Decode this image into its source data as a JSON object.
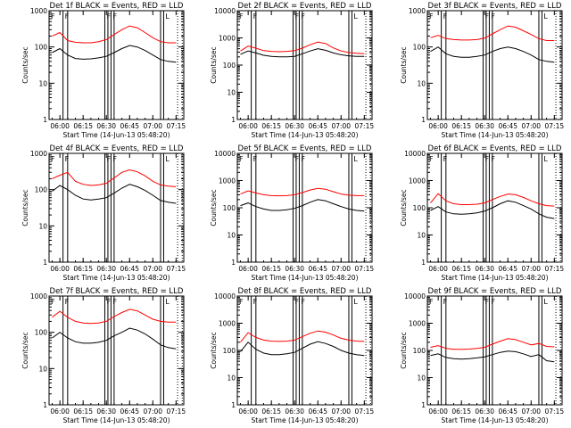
{
  "colors": {
    "events": "#000000",
    "lld": "#ff0000",
    "axes": "#000000",
    "background": "#ffffff"
  },
  "shared": {
    "ylabel": "Counts/sec",
    "xlabel": "Start Time (14-Jun-13 05:48:20)",
    "x_ticks": [
      "06:00",
      "06:15",
      "06:30",
      "06:45",
      "07:00",
      "07:15"
    ],
    "flags": [
      "F",
      "F",
      "F",
      "L"
    ],
    "y_scale": "log"
  },
  "chart_data": [
    {
      "type": "line",
      "title": "Det 1f BLACK = Events, RED = LLD",
      "ylim": [
        1,
        1000
      ],
      "y_ticks": [
        "1",
        "10",
        "100",
        "1000"
      ],
      "series": [
        {
          "name": "Events",
          "x": [
            "05:55",
            "06:00",
            "06:05",
            "06:10",
            "06:15",
            "06:20",
            "06:25",
            "06:30",
            "06:35",
            "06:40",
            "06:45",
            "06:50",
            "06:55",
            "07:00",
            "07:05",
            "07:10",
            "07:15"
          ],
          "values": [
            70,
            90,
            60,
            48,
            46,
            47,
            50,
            55,
            70,
            90,
            110,
            100,
            80,
            60,
            45,
            40,
            38
          ]
        },
        {
          "name": "LLD",
          "x": [
            "05:55",
            "06:00",
            "06:05",
            "06:10",
            "06:15",
            "06:20",
            "06:25",
            "06:30",
            "06:35",
            "06:40",
            "06:45",
            "06:50",
            "06:55",
            "07:00",
            "07:05",
            "07:10",
            "07:15"
          ],
          "values": [
            200,
            250,
            150,
            135,
            130,
            130,
            140,
            160,
            220,
            300,
            380,
            340,
            250,
            180,
            140,
            130,
            130
          ]
        }
      ]
    },
    {
      "type": "line",
      "title": "Det 2f BLACK = Events, RED = LLD",
      "ylim": [
        1,
        10000
      ],
      "y_ticks": [
        "1",
        "10",
        "100",
        "1000",
        "10000"
      ],
      "series": [
        {
          "name": "Events",
          "x": [
            "05:55",
            "06:00",
            "06:05",
            "06:10",
            "06:15",
            "06:20",
            "06:25",
            "06:30",
            "06:35",
            "06:40",
            "06:45",
            "06:50",
            "06:55",
            "07:00",
            "07:05",
            "07:10",
            "07:15"
          ],
          "values": [
            250,
            330,
            280,
            230,
            210,
            200,
            200,
            210,
            260,
            330,
            400,
            350,
            280,
            240,
            220,
            210,
            210
          ]
        },
        {
          "name": "LLD",
          "x": [
            "05:55",
            "06:00",
            "06:05",
            "06:10",
            "06:15",
            "06:20",
            "06:25",
            "06:30",
            "06:35",
            "06:40",
            "06:45",
            "06:50",
            "06:55",
            "07:00",
            "07:05",
            "07:10",
            "07:15"
          ],
          "values": [
            330,
            500,
            420,
            340,
            320,
            310,
            320,
            340,
            420,
            560,
            700,
            620,
            430,
            330,
            290,
            270,
            260
          ]
        }
      ]
    },
    {
      "type": "line",
      "title": "Det 3f BLACK = Events, RED = LLD",
      "ylim": [
        1,
        1000
      ],
      "y_ticks": [
        "1",
        "10",
        "100",
        "1000"
      ],
      "series": [
        {
          "name": "Events",
          "x": [
            "05:55",
            "06:00",
            "06:05",
            "06:10",
            "06:15",
            "06:20",
            "06:25",
            "06:30",
            "06:35",
            "06:40",
            "06:45",
            "06:50",
            "06:55",
            "07:00",
            "07:05",
            "07:10",
            "07:15"
          ],
          "values": [
            75,
            100,
            65,
            55,
            52,
            52,
            55,
            60,
            75,
            90,
            100,
            90,
            75,
            60,
            45,
            40,
            38
          ]
        },
        {
          "name": "LLD",
          "x": [
            "05:55",
            "06:00",
            "06:05",
            "06:10",
            "06:15",
            "06:20",
            "06:25",
            "06:30",
            "06:35",
            "06:40",
            "06:45",
            "06:50",
            "06:55",
            "07:00",
            "07:05",
            "07:10",
            "07:15"
          ],
          "values": [
            180,
            210,
            170,
            160,
            155,
            155,
            160,
            175,
            230,
            300,
            380,
            350,
            280,
            220,
            170,
            150,
            150
          ]
        }
      ]
    },
    {
      "type": "line",
      "title": "Det 4f BLACK = Events, RED = LLD",
      "ylim": [
        1,
        1000
      ],
      "y_ticks": [
        "1",
        "10",
        "100",
        "1000"
      ],
      "series": [
        {
          "name": "Events",
          "x": [
            "05:55",
            "06:00",
            "06:05",
            "06:10",
            "06:15",
            "06:20",
            "06:25",
            "06:30",
            "06:35",
            "06:40",
            "06:45",
            "06:50",
            "06:55",
            "07:00",
            "07:05",
            "07:10",
            "07:15"
          ],
          "values": [
            90,
            130,
            100,
            70,
            55,
            52,
            55,
            60,
            80,
            110,
            140,
            120,
            95,
            70,
            50,
            45,
            42
          ]
        },
        {
          "name": "LLD",
          "x": [
            "05:55",
            "06:00",
            "06:05",
            "06:10",
            "06:15",
            "06:20",
            "06:25",
            "06:30",
            "06:35",
            "06:40",
            "06:45",
            "06:50",
            "06:55",
            "07:00",
            "07:05",
            "07:10",
            "07:15"
          ],
          "values": [
            200,
            250,
            300,
            170,
            140,
            130,
            135,
            150,
            210,
            300,
            350,
            310,
            240,
            170,
            135,
            125,
            120
          ]
        }
      ]
    },
    {
      "type": "line",
      "title": "Det 5f BLACK = Events, RED = LLD",
      "ylim": [
        1,
        10000
      ],
      "y_ticks": [
        "1",
        "10",
        "100",
        "1000",
        "10000"
      ],
      "series": [
        {
          "name": "Events",
          "x": [
            "05:55",
            "06:00",
            "06:05",
            "06:10",
            "06:15",
            "06:20",
            "06:25",
            "06:30",
            "06:35",
            "06:40",
            "06:45",
            "06:50",
            "06:55",
            "07:00",
            "07:05",
            "07:10",
            "07:15"
          ],
          "values": [
            120,
            150,
            110,
            90,
            80,
            80,
            85,
            95,
            120,
            160,
            200,
            180,
            140,
            110,
            90,
            80,
            75
          ]
        },
        {
          "name": "LLD",
          "x": [
            "05:55",
            "06:00",
            "06:05",
            "06:10",
            "06:15",
            "06:20",
            "06:25",
            "06:30",
            "06:35",
            "06:40",
            "06:45",
            "06:50",
            "06:55",
            "07:00",
            "07:05",
            "07:10",
            "07:15"
          ],
          "values": [
            320,
            420,
            350,
            300,
            280,
            275,
            280,
            300,
            360,
            450,
            520,
            480,
            390,
            320,
            290,
            280,
            280
          ]
        }
      ]
    },
    {
      "type": "line",
      "title": "Det 6f BLACK = Events, RED = LLD",
      "ylim": [
        1,
        10000
      ],
      "y_ticks": [
        "1",
        "10",
        "100",
        "1000",
        "10000"
      ],
      "series": [
        {
          "name": "Events",
          "x": [
            "05:55",
            "06:00",
            "06:05",
            "06:10",
            "06:15",
            "06:20",
            "06:25",
            "06:30",
            "06:35",
            "06:40",
            "06:45",
            "06:50",
            "06:55",
            "07:00",
            "07:05",
            "07:10",
            "07:15"
          ],
          "values": [
            80,
            110,
            70,
            60,
            58,
            60,
            65,
            75,
            100,
            140,
            180,
            160,
            120,
            90,
            60,
            45,
            40
          ]
        },
        {
          "name": "LLD",
          "x": [
            "05:55",
            "06:00",
            "06:05",
            "06:10",
            "06:15",
            "06:20",
            "06:25",
            "06:30",
            "06:35",
            "06:40",
            "06:45",
            "06:50",
            "06:55",
            "07:00",
            "07:05",
            "07:10",
            "07:15"
          ],
          "values": [
            150,
            330,
            180,
            140,
            130,
            130,
            135,
            150,
            200,
            260,
            320,
            300,
            240,
            180,
            140,
            120,
            115
          ]
        }
      ]
    },
    {
      "type": "line",
      "title": "Det 7f BLACK = Events, RED = LLD",
      "ylim": [
        1,
        1000
      ],
      "y_ticks": [
        "1",
        "10",
        "100",
        "1000"
      ],
      "series": [
        {
          "name": "Events",
          "x": [
            "05:55",
            "06:00",
            "06:05",
            "06:10",
            "06:15",
            "06:20",
            "06:25",
            "06:30",
            "06:35",
            "06:40",
            "06:45",
            "06:50",
            "06:55",
            "07:00",
            "07:05",
            "07:10",
            "07:15"
          ],
          "values": [
            70,
            100,
            70,
            55,
            50,
            50,
            53,
            60,
            80,
            100,
            130,
            115,
            90,
            65,
            45,
            38,
            35
          ]
        },
        {
          "name": "LLD",
          "x": [
            "05:55",
            "06:00",
            "06:05",
            "06:10",
            "06:15",
            "06:20",
            "06:25",
            "06:30",
            "06:35",
            "06:40",
            "06:45",
            "06:50",
            "06:55",
            "07:00",
            "07:05",
            "07:10",
            "07:15"
          ],
          "values": [
            260,
            380,
            260,
            200,
            180,
            175,
            180,
            200,
            270,
            350,
            430,
            390,
            300,
            230,
            200,
            190,
            190
          ]
        }
      ]
    },
    {
      "type": "line",
      "title": "Det 8f BLACK = Events, RED = LLD",
      "ylim": [
        1,
        10000
      ],
      "y_ticks": [
        "1",
        "10",
        "100",
        "1000",
        "10000"
      ],
      "series": [
        {
          "name": "Events",
          "x": [
            "05:55",
            "06:00",
            "06:05",
            "06:10",
            "06:15",
            "06:20",
            "06:25",
            "06:30",
            "06:35",
            "06:40",
            "06:45",
            "06:50",
            "06:55",
            "07:00",
            "07:05",
            "07:10",
            "07:15"
          ],
          "values": [
            90,
            200,
            110,
            80,
            70,
            70,
            75,
            85,
            120,
            170,
            210,
            180,
            140,
            100,
            80,
            70,
            65
          ]
        },
        {
          "name": "LLD",
          "x": [
            "05:55",
            "06:00",
            "06:05",
            "06:10",
            "06:15",
            "06:20",
            "06:25",
            "06:30",
            "06:35",
            "06:40",
            "06:45",
            "06:50",
            "06:55",
            "07:00",
            "07:05",
            "07:10",
            "07:15"
          ],
          "values": [
            200,
            450,
            300,
            240,
            220,
            215,
            220,
            240,
            320,
            430,
            520,
            470,
            370,
            280,
            240,
            220,
            215
          ]
        }
      ]
    },
    {
      "type": "line",
      "title": "Det 9f BLACK = Events, RED = LLD",
      "ylim": [
        1,
        10000
      ],
      "y_ticks": [
        "1",
        "10",
        "100",
        "1000",
        "10000"
      ],
      "series": [
        {
          "name": "Events",
          "x": [
            "05:55",
            "06:00",
            "06:05",
            "06:10",
            "06:15",
            "06:20",
            "06:25",
            "06:30",
            "06:35",
            "06:40",
            "06:45",
            "06:50",
            "06:55",
            "07:00",
            "07:05",
            "07:10",
            "07:15"
          ],
          "values": [
            65,
            75,
            55,
            50,
            48,
            50,
            53,
            58,
            70,
            85,
            95,
            90,
            75,
            60,
            70,
            42,
            38
          ]
        },
        {
          "name": "LLD",
          "x": [
            "05:55",
            "06:00",
            "06:05",
            "06:10",
            "06:15",
            "06:20",
            "06:25",
            "06:30",
            "06:35",
            "06:40",
            "06:45",
            "06:50",
            "06:55",
            "07:00",
            "07:05",
            "07:10",
            "07:15"
          ],
          "values": [
            130,
            150,
            120,
            110,
            110,
            112,
            118,
            130,
            170,
            220,
            270,
            250,
            200,
            160,
            180,
            140,
            135
          ]
        }
      ]
    }
  ]
}
